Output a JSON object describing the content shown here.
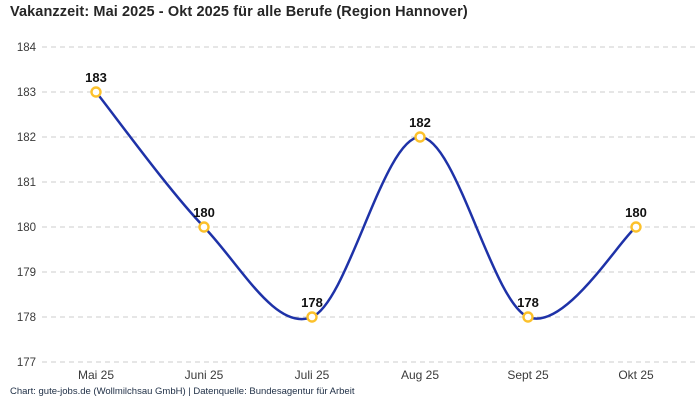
{
  "header": {
    "title": "Vakanzzeit: Mai 2025 - Okt 2025 für alle Berufe (Region Hannover)"
  },
  "footer": {
    "attribution": "Chart: gute-jobs.de (Wollmilchsau GmbH) | Datenquelle: Bundesagentur für Arbeit"
  },
  "chart_data": {
    "type": "line",
    "title": "Vakanzzeit: Mai 2025 - Okt 2025 für alle Berufe (Region Hannover)",
    "categories": [
      "Mai 25",
      "Juni 25",
      "Juli 25",
      "Aug 25",
      "Sept 25",
      "Okt 25"
    ],
    "values": [
      183,
      180,
      178,
      182,
      178,
      180
    ],
    "data_labels": [
      "183",
      "180",
      "178",
      "182",
      "178",
      "180"
    ],
    "xlabel": "",
    "ylabel": "",
    "ylim": [
      177,
      184
    ],
    "y_ticks": [
      177,
      178,
      179,
      180,
      181,
      182,
      183,
      184
    ],
    "grid": "horizontal-dashed",
    "legend_position": "none",
    "curve": "smooth-spline",
    "colors": {
      "line": "#1e32a8",
      "marker_stroke": "#fcc12b",
      "marker_fill": "#ffffff",
      "grid": "#cccccc",
      "data_label": "#111111",
      "axis_text": "#3a3a3a"
    }
  }
}
